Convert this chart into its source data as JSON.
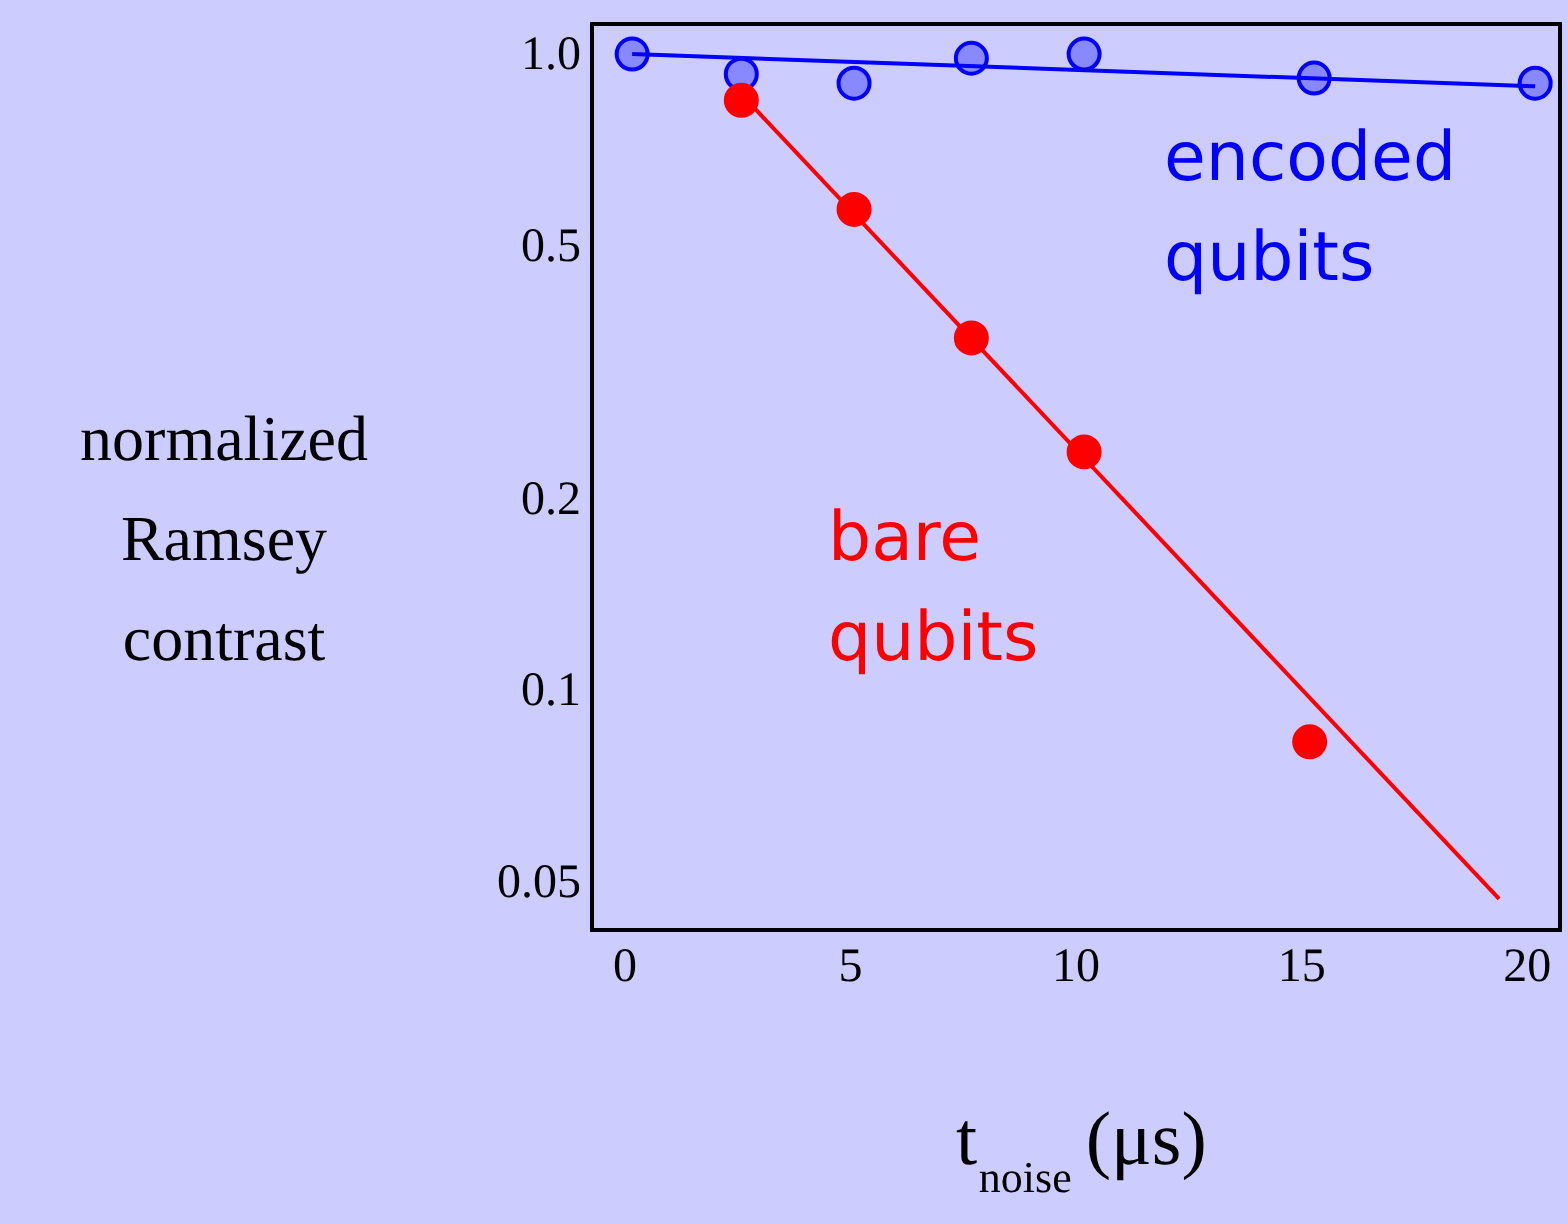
{
  "chart_data": {
    "type": "scatter",
    "xlabel": "t$_{noise}$ (μs)",
    "ylabel": "normalized\nRamsey\ncontrast",
    "log": "y",
    "grid": false,
    "marker": "circle",
    "xlim": [
      -0.71,
      20.75
    ],
    "xticks": [
      0,
      5,
      10,
      15,
      20
    ],
    "ylim": [
      0.042,
      1.115
    ],
    "yticks": [
      0.05,
      0.1,
      0.2,
      0.5,
      {
        "value": 1,
        "label": "1.0"
      }
    ],
    "series": [
      {
        "name": "encoded qubits",
        "color": "#8888ff",
        "x": [
          0.18,
          2.6,
          5.1,
          7.7,
          10.2,
          15.3,
          20.2
        ],
        "values": [
          1.0,
          0.93,
          0.9,
          0.985,
          1.0,
          0.917,
          0.9
        ]
      },
      {
        "type": "line",
        "color": "#0000ff",
        "marker": "none",
        "x": [
          0.18,
          20.2
        ],
        "values": [
          1.0,
          0.89
        ]
      },
      {
        "name": "bare qubits",
        "color": "#ff0000",
        "x": [
          2.6,
          5.1,
          7.7,
          10.2,
          15.2
        ],
        "values": [
          0.846,
          0.57,
          0.358,
          0.237,
          0.083
        ]
      },
      {
        "type": "line",
        "color": "#ff0000",
        "marker": "none",
        "x": [
          2.6,
          19.4
        ],
        "values": [
          0.865,
          0.047
        ]
      }
    ]
  }
}
